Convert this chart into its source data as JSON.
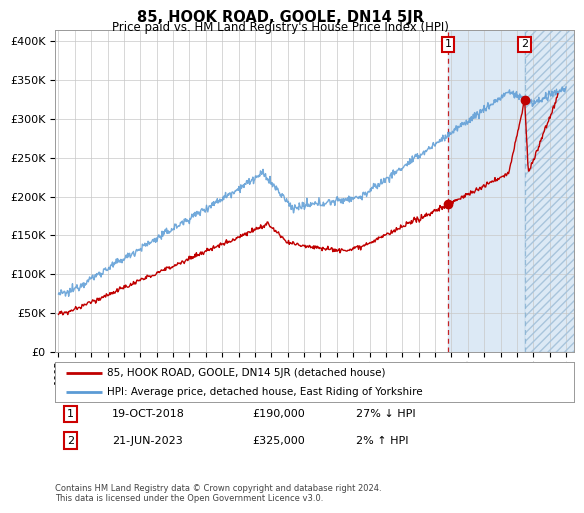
{
  "title": "85, HOOK ROAD, GOOLE, DN14 5JR",
  "subtitle": "Price paid vs. HM Land Registry's House Price Index (HPI)",
  "ylabel_ticks": [
    "£0",
    "£50K",
    "£100K",
    "£150K",
    "£200K",
    "£250K",
    "£300K",
    "£350K",
    "£400K"
  ],
  "ytick_values": [
    0,
    50000,
    100000,
    150000,
    200000,
    250000,
    300000,
    350000,
    400000
  ],
  "ylim": [
    0,
    415000
  ],
  "xlim_start": 1994.8,
  "xlim_end": 2026.5,
  "hpi_color": "#5b9bd5",
  "price_color": "#c00000",
  "marker_color": "#c00000",
  "shade_color": "#dce9f5",
  "transaction1_date": "19-OCT-2018",
  "transaction1_price": "£190,000",
  "transaction1_hpi": "27% ↓ HPI",
  "transaction1_x": 2018.8,
  "transaction1_y": 190000,
  "transaction2_date": "21-JUN-2023",
  "transaction2_price": "£325,000",
  "transaction2_hpi": "2% ↑ HPI",
  "transaction2_x": 2023.47,
  "transaction2_y": 325000,
  "legend_label1": "85, HOOK ROAD, GOOLE, DN14 5JR (detached house)",
  "legend_label2": "HPI: Average price, detached house, East Riding of Yorkshire",
  "footnote": "Contains HM Land Registry data © Crown copyright and database right 2024.\nThis data is licensed under the Open Government Licence v3.0.",
  "xtick_years": [
    1995,
    1996,
    1997,
    1998,
    1999,
    2000,
    2001,
    2002,
    2003,
    2004,
    2005,
    2006,
    2007,
    2008,
    2009,
    2010,
    2011,
    2012,
    2013,
    2014,
    2015,
    2016,
    2017,
    2018,
    2019,
    2020,
    2021,
    2022,
    2023,
    2024,
    2025,
    2026
  ]
}
